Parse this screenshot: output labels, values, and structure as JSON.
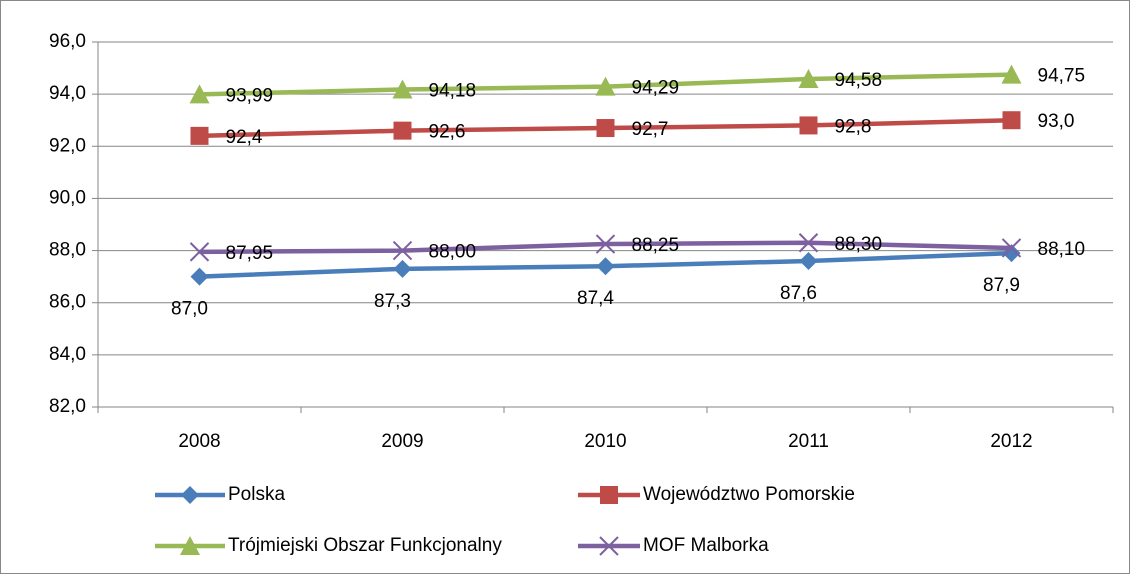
{
  "chart_data": {
    "type": "line",
    "categories": [
      "2008",
      "2009",
      "2010",
      "2011",
      "2012"
    ],
    "ylim": [
      82,
      96
    ],
    "yticks": [
      {
        "value": 82,
        "label": "82,0"
      },
      {
        "value": 84,
        "label": "84,0"
      },
      {
        "value": 86,
        "label": "86,0"
      },
      {
        "value": 88,
        "label": "88,0"
      },
      {
        "value": 90,
        "label": "90,0"
      },
      {
        "value": 92,
        "label": "92,0"
      },
      {
        "value": 94,
        "label": "94,0"
      },
      {
        "value": 96,
        "label": "96,0"
      }
    ],
    "grid": true,
    "legend": "bottom",
    "series": [
      {
        "name": "Polska",
        "color": "#4a7ebb",
        "marker": "diamond",
        "values": [
          87.0,
          87.3,
          87.4,
          87.6,
          87.9
        ],
        "value_labels": [
          "87,0",
          "87,3",
          "87,4",
          "87,6",
          "87,9"
        ]
      },
      {
        "name": "Województwo Pomorskie",
        "color": "#be4b48",
        "marker": "square",
        "values": [
          92.4,
          92.6,
          92.7,
          92.8,
          93.0
        ],
        "value_labels": [
          "92,4",
          "92,6",
          "92,7",
          "92,8",
          "93,0"
        ]
      },
      {
        "name": "Trójmiejski Obszar Funkcjonalny",
        "color": "#98b954",
        "marker": "triangle",
        "values": [
          93.99,
          94.18,
          94.29,
          94.58,
          94.75
        ],
        "value_labels": [
          "93,99",
          "94,18",
          "94,29",
          "94,58",
          "94,75"
        ]
      },
      {
        "name": "MOF Malborka",
        "color": "#7d60a0",
        "marker": "x",
        "values": [
          87.95,
          88.0,
          88.25,
          88.3,
          88.1
        ],
        "value_labels": [
          "87,95",
          "88,00",
          "88,25",
          "88,30",
          "88,10"
        ]
      }
    ]
  }
}
